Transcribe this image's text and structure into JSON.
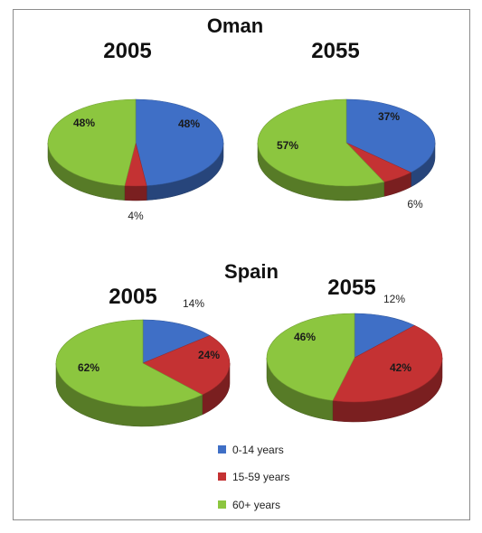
{
  "chart_data": {
    "type": "pie",
    "legend_position": "bottom",
    "legend": [
      {
        "label": "0-14 years",
        "color": "#3f6fc6"
      },
      {
        "label": "15-59 years",
        "color": "#c43233"
      },
      {
        "label": "60+ years",
        "color": "#8cc63f"
      }
    ],
    "groups": [
      {
        "country": "Oman",
        "charts": [
          {
            "year": "2005",
            "values": [
              48,
              4,
              48
            ],
            "labels": [
              "48%",
              "4%",
              "48%"
            ]
          },
          {
            "year": "2055",
            "values": [
              37,
              6,
              57
            ],
            "labels": [
              "37%",
              "6%",
              "57%"
            ]
          }
        ]
      },
      {
        "country": "Spain",
        "charts": [
          {
            "year": "2005",
            "values": [
              14,
              24,
              62
            ],
            "labels": [
              "14%",
              "24%",
              "62%"
            ]
          },
          {
            "year": "2055",
            "values": [
              12,
              42,
              46
            ],
            "labels": [
              "12%",
              "42%",
              "46%"
            ]
          }
        ]
      }
    ]
  }
}
